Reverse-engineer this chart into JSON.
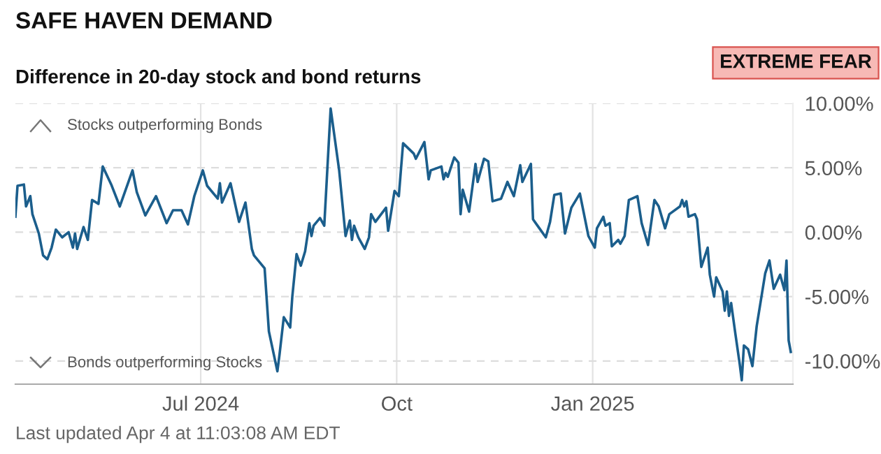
{
  "chart_data": {
    "type": "line",
    "title": "SAFE HAVEN DEMAND",
    "subtitle": "Difference in 20-day stock and bond returns",
    "annotations": [
      "EXTREME FEAR",
      "Stocks outperforming Bonds",
      "Bonds outperforming Stocks",
      "Last updated Apr 4 at 11:03:08 AM EDT"
    ],
    "series": [
      {
        "color": "#1b5e8c",
        "x": [
          "2024-04-05",
          "2024-04-06",
          "2024-04-09",
          "2024-04-10",
          "2024-04-12",
          "2024-04-13",
          "2024-04-16",
          "2024-04-18",
          "2024-04-20",
          "2024-04-22",
          "2024-04-24",
          "2024-04-27",
          "2024-04-30",
          "2024-05-02",
          "2024-05-03",
          "2024-05-04",
          "2024-05-07",
          "2024-05-09",
          "2024-05-11",
          "2024-05-14",
          "2024-05-16",
          "2024-05-20",
          "2024-05-24",
          "2024-05-30",
          "2024-06-01",
          "2024-06-05",
          "2024-06-10",
          "2024-06-15",
          "2024-06-18",
          "2024-06-22",
          "2024-06-25",
          "2024-06-28",
          "2024-07-02",
          "2024-07-04",
          "2024-07-09",
          "2024-07-10",
          "2024-07-11",
          "2024-07-15",
          "2024-07-19",
          "2024-07-22",
          "2024-07-25",
          "2024-07-26",
          "2024-07-31",
          "2024-08-02",
          "2024-08-06",
          "2024-08-07",
          "2024-08-09",
          "2024-08-12",
          "2024-08-13",
          "2024-08-15",
          "2024-08-17",
          "2024-08-19",
          "2024-08-21",
          "2024-08-22",
          "2024-08-23",
          "2024-08-26",
          "2024-08-28",
          "2024-08-31",
          "2024-09-04",
          "2024-09-07",
          "2024-09-09",
          "2024-09-10",
          "2024-09-11",
          "2024-09-13",
          "2024-09-16",
          "2024-09-18",
          "2024-09-19",
          "2024-09-21",
          "2024-09-26",
          "2024-09-27",
          "2024-09-30",
          "2024-10-02",
          "2024-10-04",
          "2024-10-09",
          "2024-10-10",
          "2024-10-14",
          "2024-10-16",
          "2024-10-17",
          "2024-10-22",
          "2024-10-23",
          "2024-10-24",
          "2024-10-25",
          "2024-10-28",
          "2024-10-30",
          "2024-10-31",
          "2024-11-01",
          "2024-11-04",
          "2024-11-07",
          "2024-11-08",
          "2024-11-11",
          "2024-11-13",
          "2024-11-15",
          "2024-11-19",
          "2024-11-22",
          "2024-11-25",
          "2024-11-28",
          "2024-11-29",
          "2024-12-03",
          "2024-12-04",
          "2024-12-07",
          "2024-12-10",
          "2024-12-12",
          "2024-12-14",
          "2024-12-17",
          "2024-12-19",
          "2024-12-22",
          "2024-12-26",
          "2024-12-30",
          "2025-01-02",
          "2025-01-03",
          "2025-01-06",
          "2025-01-07",
          "2025-01-09",
          "2025-01-10",
          "2025-01-13",
          "2025-01-14",
          "2025-01-16",
          "2025-01-18",
          "2025-01-22",
          "2025-01-24",
          "2025-01-27",
          "2025-01-30",
          "2025-02-01",
          "2025-02-04",
          "2025-02-06",
          "2025-02-11",
          "2025-02-12",
          "2025-02-13",
          "2025-02-14",
          "2025-02-15",
          "2025-02-18",
          "2025-02-19",
          "2025-02-21",
          "2025-02-24",
          "2025-02-25",
          "2025-02-27",
          "2025-02-28",
          "2025-03-03",
          "2025-03-04",
          "2025-03-05",
          "2025-03-06",
          "2025-03-07",
          "2025-03-09",
          "2025-03-11",
          "2025-03-12",
          "2025-03-13",
          "2025-03-15",
          "2025-03-17",
          "2025-03-19",
          "2025-03-23",
          "2025-03-25",
          "2025-03-27",
          "2025-03-30",
          "2025-04-01",
          "2025-04-02",
          "2025-04-03",
          "2025-04-04"
        ],
        "values": [
          1.2,
          3.6,
          3.7,
          2.0,
          2.8,
          1.4,
          -0.1,
          -1.8,
          -2.1,
          -1.2,
          0.2,
          -0.4,
          0.0,
          -1.2,
          -0.1,
          -1.3,
          0.4,
          -0.6,
          2.5,
          2.2,
          5.1,
          3.7,
          2.0,
          4.8,
          3.1,
          1.3,
          2.8,
          0.7,
          1.7,
          1.7,
          0.6,
          2.8,
          4.8,
          3.6,
          2.6,
          3.8,
          2.3,
          3.8,
          0.8,
          2.3,
          -1.3,
          -1.8,
          -2.8,
          -7.7,
          -10.8,
          -9.5,
          -6.6,
          -7.4,
          -5.0,
          -1.7,
          -2.6,
          -1.5,
          0.7,
          -0.3,
          0.5,
          1.1,
          0.5,
          9.6,
          4.8,
          -0.3,
          0.9,
          -0.6,
          0.5,
          -0.4,
          -1.3,
          -0.4,
          1.4,
          0.8,
          1.9,
          0.1,
          3.2,
          2.8,
          6.9,
          6.1,
          5.7,
          7.0,
          4.1,
          4.8,
          5.1,
          4.1,
          4.6,
          4.3,
          5.8,
          5.4,
          1.4,
          3.3,
          1.6,
          5.3,
          3.9,
          5.7,
          5.5,
          2.4,
          2.6,
          3.9,
          2.8,
          5.2,
          3.9,
          5.3,
          1.0,
          0.3,
          -0.4,
          0.8,
          2.9,
          3.0,
          -0.1,
          1.9,
          3.0,
          -0.3,
          -1.2,
          0.3,
          1.2,
          0.5,
          0.7,
          -1.1,
          -0.6,
          -0.9,
          -0.3,
          2.5,
          2.8,
          0.7,
          -1.0,
          2.5,
          2.0,
          0.3,
          1.4,
          2.0,
          2.5,
          2.0,
          2.4,
          1.2,
          1.4,
          1.0,
          -2.7,
          -1.2,
          -3.3,
          -5.0,
          -3.5,
          -4.6,
          -6.1,
          -4.6,
          -6.5,
          -5.5,
          -7.9,
          -10.2,
          -11.5,
          -8.8,
          -9.1,
          -10.4,
          -7.3,
          -3.2,
          -2.2,
          -4.4,
          -3.3,
          -4.5,
          -2.2,
          -8.4,
          -9.3
        ]
      }
    ],
    "xlim": [
      "2024-04-05",
      "2025-04-05"
    ],
    "xticks": [
      {
        "value": "2024-07-01",
        "label": "Jul 2024"
      },
      {
        "value": "2024-10-01",
        "label": "Oct"
      },
      {
        "value": "2025-01-01",
        "label": "Jan 2025"
      }
    ],
    "ylim": [
      -11.8,
      10
    ],
    "yticks": [
      {
        "value": -10,
        "label": "-10.00%"
      },
      {
        "value": -5,
        "label": "-5.00%"
      },
      {
        "value": 0,
        "label": "0.00%"
      },
      {
        "value": 5,
        "label": "5.00%"
      },
      {
        "value": 10,
        "label": "10.00%"
      }
    ],
    "grid": true,
    "legend": false,
    "marker": "none",
    "line_style": "solid"
  }
}
